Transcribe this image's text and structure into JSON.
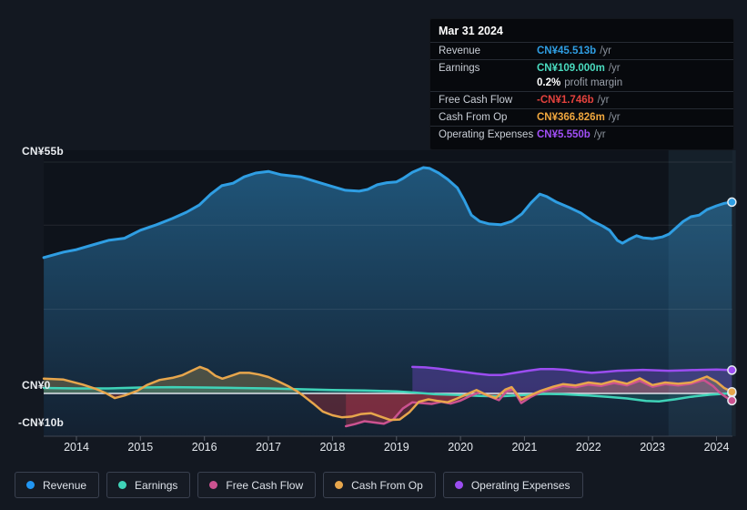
{
  "tooltip": {
    "date": "Mar 31 2024",
    "rows": [
      {
        "label": "Revenue",
        "value": "CN¥45.513b",
        "suffix": "/yr",
        "color": "#2f9ee3"
      },
      {
        "label": "Earnings",
        "value": "CN¥109.000m",
        "suffix": "/yr",
        "color": "#4adcc0"
      },
      {
        "label": "Free Cash Flow",
        "value": "-CN¥1.746b",
        "suffix": "/yr",
        "color": "#e4423d"
      },
      {
        "label": "Cash From Op",
        "value": "CN¥366.826m",
        "suffix": "/yr",
        "color": "#f0a73e"
      },
      {
        "label": "Operating Expenses",
        "value": "CN¥5.550b",
        "suffix": "/yr",
        "color": "#a14ef5"
      }
    ],
    "profit_margin": {
      "pct": "0.2%",
      "text": "profit margin"
    }
  },
  "y_axis": {
    "labels": [
      "CN¥55b",
      "CN¥0",
      "-CN¥10b"
    ]
  },
  "legend": [
    {
      "label": "Revenue",
      "color": "#2196f3"
    },
    {
      "label": "Earnings",
      "color": "#3fd3b8"
    },
    {
      "label": "Free Cash Flow",
      "color": "#cb5290"
    },
    {
      "label": "Cash From Op",
      "color": "#e7a64c"
    },
    {
      "label": "Operating Expenses",
      "color": "#9b4df0"
    }
  ],
  "chart_data": {
    "type": "area",
    "units": "CN¥ billions per year",
    "x_ticks": [
      "2014",
      "2015",
      "2016",
      "2017",
      "2018",
      "2019",
      "2020",
      "2021",
      "2022",
      "2023",
      "2024"
    ],
    "x_range": [
      2013.45,
      2024.3
    ],
    "ylim": [
      -10,
      55
    ],
    "gridline_values": [
      55,
      40,
      20
    ],
    "zero_value": 0,
    "bottom_value": -10,
    "highlight_band": {
      "start_year": 2023.25,
      "end_year": 2024.3
    },
    "series": [
      {
        "name": "Revenue",
        "color": "#2f9ee3",
        "width": 3,
        "fill_mode": "bottom",
        "points": [
          [
            2013.49,
            32.3
          ],
          [
            2013.8,
            33.6
          ],
          [
            2014,
            34.2
          ],
          [
            2014.25,
            35.3
          ],
          [
            2014.5,
            36.4
          ],
          [
            2014.75,
            36.9
          ],
          [
            2015,
            38.8
          ],
          [
            2015.25,
            40.1
          ],
          [
            2015.5,
            41.6
          ],
          [
            2015.72,
            43.1
          ],
          [
            2015.92,
            44.8
          ],
          [
            2016.1,
            47.4
          ],
          [
            2016.27,
            49.4
          ],
          [
            2016.45,
            50.0
          ],
          [
            2016.62,
            51.5
          ],
          [
            2016.8,
            52.4
          ],
          [
            2017,
            52.8
          ],
          [
            2017.2,
            52.0
          ],
          [
            2017.5,
            51.5
          ],
          [
            2017.78,
            50.2
          ],
          [
            2018,
            49.2
          ],
          [
            2018.2,
            48.3
          ],
          [
            2018.42,
            48.1
          ],
          [
            2018.55,
            48.5
          ],
          [
            2018.7,
            49.6
          ],
          [
            2018.85,
            50.1
          ],
          [
            2019,
            50.3
          ],
          [
            2019.1,
            51.1
          ],
          [
            2019.25,
            52.6
          ],
          [
            2019.42,
            53.7
          ],
          [
            2019.52,
            53.5
          ],
          [
            2019.66,
            52.4
          ],
          [
            2019.8,
            50.9
          ],
          [
            2019.95,
            48.9
          ],
          [
            2020.06,
            45.9
          ],
          [
            2020.17,
            42.4
          ],
          [
            2020.3,
            40.9
          ],
          [
            2020.45,
            40.3
          ],
          [
            2020.63,
            40.1
          ],
          [
            2020.8,
            40.9
          ],
          [
            2020.96,
            42.7
          ],
          [
            2021.1,
            45.3
          ],
          [
            2021.24,
            47.4
          ],
          [
            2021.35,
            46.8
          ],
          [
            2021.5,
            45.5
          ],
          [
            2021.7,
            44.2
          ],
          [
            2021.88,
            42.9
          ],
          [
            2022.05,
            41.1
          ],
          [
            2022.22,
            39.8
          ],
          [
            2022.33,
            38.8
          ],
          [
            2022.45,
            36.4
          ],
          [
            2022.53,
            35.7
          ],
          [
            2022.63,
            36.6
          ],
          [
            2022.75,
            37.5
          ],
          [
            2022.85,
            37.0
          ],
          [
            2023,
            36.8
          ],
          [
            2023.15,
            37.2
          ],
          [
            2023.26,
            37.9
          ],
          [
            2023.37,
            39.4
          ],
          [
            2023.48,
            40.9
          ],
          [
            2023.6,
            42.0
          ],
          [
            2023.73,
            42.4
          ],
          [
            2023.85,
            43.7
          ],
          [
            2024,
            44.6
          ],
          [
            2024.12,
            45.2
          ],
          [
            2024.24,
            45.5
          ]
        ]
      },
      {
        "name": "Operating Expenses",
        "color": "#9b4df0",
        "width": 2.5,
        "fill_mode": "zero",
        "fill_above": "rgba(110,70,190,0.42)",
        "fill_below": "rgba(110,70,190,0.42)",
        "points": [
          [
            2019.25,
            6.3
          ],
          [
            2019.45,
            6.2
          ],
          [
            2019.65,
            5.9
          ],
          [
            2019.85,
            5.5
          ],
          [
            2020.05,
            5.1
          ],
          [
            2020.25,
            4.7
          ],
          [
            2020.45,
            4.4
          ],
          [
            2020.65,
            4.4
          ],
          [
            2020.85,
            4.9
          ],
          [
            2021.05,
            5.4
          ],
          [
            2021.25,
            5.8
          ],
          [
            2021.45,
            5.8
          ],
          [
            2021.65,
            5.6
          ],
          [
            2021.85,
            5.2
          ],
          [
            2022.05,
            4.9
          ],
          [
            2022.25,
            5.1
          ],
          [
            2022.45,
            5.4
          ],
          [
            2022.65,
            5.5
          ],
          [
            2022.85,
            5.6
          ],
          [
            2023.05,
            5.5
          ],
          [
            2023.25,
            5.4
          ],
          [
            2023.5,
            5.5
          ],
          [
            2023.75,
            5.6
          ],
          [
            2024.0,
            5.7
          ],
          [
            2024.24,
            5.55
          ]
        ]
      },
      {
        "name": "Cash From Op",
        "color": "#e7a64c",
        "width": 2.5,
        "fill_mode": "zero",
        "fill_above": "rgba(190,160,80,0.32)",
        "fill_below": "rgba(150,45,55,0.45)",
        "points": [
          [
            2013.49,
            3.5
          ],
          [
            2013.8,
            3.3
          ],
          [
            2014.1,
            2.1
          ],
          [
            2014.3,
            1.1
          ],
          [
            2014.47,
            0
          ],
          [
            2014.6,
            -1.1
          ],
          [
            2014.75,
            -0.5
          ],
          [
            2014.95,
            0.6
          ],
          [
            2015.1,
            2.0
          ],
          [
            2015.3,
            3.2
          ],
          [
            2015.5,
            3.7
          ],
          [
            2015.65,
            4.3
          ],
          [
            2015.8,
            5.4
          ],
          [
            2015.93,
            6.3
          ],
          [
            2016.05,
            5.6
          ],
          [
            2016.17,
            4.2
          ],
          [
            2016.28,
            3.5
          ],
          [
            2016.4,
            4.1
          ],
          [
            2016.55,
            4.9
          ],
          [
            2016.7,
            4.9
          ],
          [
            2016.85,
            4.5
          ],
          [
            2017.0,
            3.9
          ],
          [
            2017.15,
            2.9
          ],
          [
            2017.3,
            1.8
          ],
          [
            2017.45,
            0.5
          ],
          [
            2017.55,
            -0.6
          ],
          [
            2017.7,
            -2.4
          ],
          [
            2017.85,
            -4.3
          ],
          [
            2018.0,
            -5.2
          ],
          [
            2018.15,
            -5.7
          ],
          [
            2018.3,
            -5.5
          ],
          [
            2018.45,
            -4.9
          ],
          [
            2018.6,
            -4.7
          ],
          [
            2018.75,
            -5.5
          ],
          [
            2018.9,
            -6.3
          ],
          [
            2019.05,
            -6.2
          ],
          [
            2019.2,
            -4.5
          ],
          [
            2019.35,
            -2.0
          ],
          [
            2019.5,
            -1.4
          ],
          [
            2019.65,
            -1.8
          ],
          [
            2019.8,
            -2.1
          ],
          [
            2019.95,
            -1.2
          ],
          [
            2020.1,
            -0.2
          ],
          [
            2020.25,
            0.8
          ],
          [
            2020.4,
            -0.3
          ],
          [
            2020.55,
            -1.1
          ],
          [
            2020.7,
            0.9
          ],
          [
            2020.8,
            1.5
          ],
          [
            2020.95,
            -1.5
          ],
          [
            2021.1,
            -0.4
          ],
          [
            2021.25,
            0.6
          ],
          [
            2021.45,
            1.6
          ],
          [
            2021.6,
            2.2
          ],
          [
            2021.8,
            1.9
          ],
          [
            2022.0,
            2.6
          ],
          [
            2022.2,
            2.2
          ],
          [
            2022.4,
            3.0
          ],
          [
            2022.6,
            2.3
          ],
          [
            2022.8,
            3.6
          ],
          [
            2023.0,
            2.0
          ],
          [
            2023.2,
            2.6
          ],
          [
            2023.4,
            2.3
          ],
          [
            2023.6,
            2.6
          ],
          [
            2023.85,
            4.0
          ],
          [
            2024.0,
            2.8
          ],
          [
            2024.12,
            1.3
          ],
          [
            2024.24,
            0.4
          ]
        ]
      },
      {
        "name": "Free Cash Flow",
        "color": "#cb5290",
        "width": 2.5,
        "fill_mode": "zero",
        "fill_above": "rgba(203,82,144,0.18)",
        "fill_below": "rgba(190,55,80,0.38)",
        "points": [
          [
            2018.21,
            -7.8
          ],
          [
            2018.35,
            -7.3
          ],
          [
            2018.5,
            -6.6
          ],
          [
            2018.65,
            -6.9
          ],
          [
            2018.8,
            -7.2
          ],
          [
            2018.95,
            -6.2
          ],
          [
            2019.1,
            -3.6
          ],
          [
            2019.25,
            -2.1
          ],
          [
            2019.4,
            -2.3
          ],
          [
            2019.55,
            -2.5
          ],
          [
            2019.7,
            -2.0
          ],
          [
            2019.85,
            -2.4
          ],
          [
            2020.0,
            -1.7
          ],
          [
            2020.15,
            -0.6
          ],
          [
            2020.3,
            0.3
          ],
          [
            2020.45,
            -0.7
          ],
          [
            2020.6,
            -1.6
          ],
          [
            2020.72,
            0.5
          ],
          [
            2020.82,
            1.0
          ],
          [
            2020.95,
            -2.3
          ],
          [
            2021.1,
            -0.8
          ],
          [
            2021.25,
            0.3
          ],
          [
            2021.45,
            1.2
          ],
          [
            2021.6,
            1.8
          ],
          [
            2021.8,
            1.5
          ],
          [
            2022.0,
            2.1
          ],
          [
            2022.2,
            1.8
          ],
          [
            2022.4,
            2.5
          ],
          [
            2022.6,
            1.9
          ],
          [
            2022.8,
            3.0
          ],
          [
            2023.0,
            1.6
          ],
          [
            2023.2,
            2.2
          ],
          [
            2023.4,
            1.9
          ],
          [
            2023.6,
            2.3
          ],
          [
            2023.8,
            3.2
          ],
          [
            2023.95,
            1.7
          ],
          [
            2024.05,
            0.2
          ],
          [
            2024.15,
            -0.9
          ],
          [
            2024.24,
            -1.7
          ]
        ]
      },
      {
        "name": "Earnings",
        "color": "#3fd3b8",
        "width": 2.5,
        "fill_mode": "zero",
        "fill_above": "rgba(63,211,184,0.24)",
        "fill_below": "rgba(63,211,184,0.15)",
        "points": [
          [
            2013.49,
            1.3
          ],
          [
            2014.0,
            1.2
          ],
          [
            2014.5,
            1.2
          ],
          [
            2015.0,
            1.4
          ],
          [
            2015.5,
            1.5
          ],
          [
            2016.0,
            1.4
          ],
          [
            2016.5,
            1.3
          ],
          [
            2017.0,
            1.2
          ],
          [
            2017.5,
            1.0
          ],
          [
            2018.0,
            0.8
          ],
          [
            2018.5,
            0.7
          ],
          [
            2019.0,
            0.5
          ],
          [
            2019.3,
            0.2
          ],
          [
            2019.6,
            -0.2
          ],
          [
            2020.0,
            -0.4
          ],
          [
            2020.3,
            -0.6
          ],
          [
            2020.6,
            -0.7
          ],
          [
            2021.0,
            -0.4
          ],
          [
            2021.3,
            -0.1
          ],
          [
            2021.6,
            -0.2
          ],
          [
            2022.0,
            -0.5
          ],
          [
            2022.3,
            -0.8
          ],
          [
            2022.6,
            -1.2
          ],
          [
            2022.9,
            -1.8
          ],
          [
            2023.1,
            -1.9
          ],
          [
            2023.35,
            -1.4
          ],
          [
            2023.6,
            -0.8
          ],
          [
            2023.9,
            -0.3
          ],
          [
            2024.1,
            -0.1
          ],
          [
            2024.24,
            0.1
          ]
        ]
      }
    ]
  }
}
